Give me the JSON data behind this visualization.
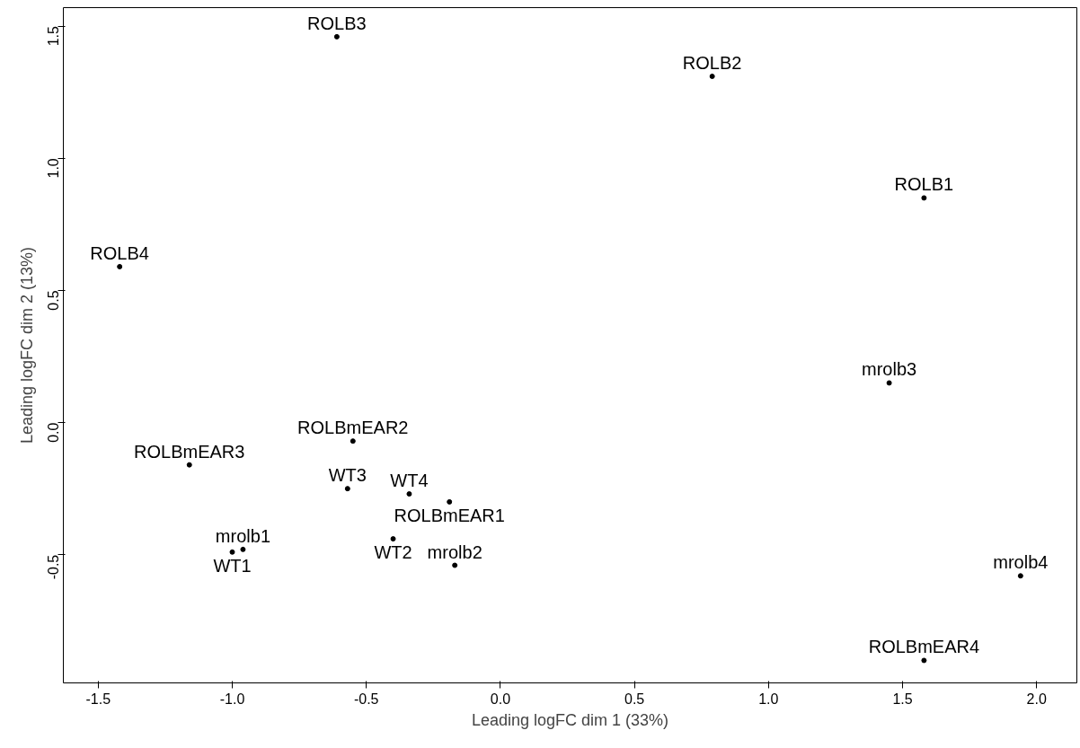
{
  "chart_data": {
    "type": "scatter",
    "xlabel": "Leading logFC dim 1 (33%)",
    "ylabel": "Leading logFC dim 2 (13%)",
    "marker": "circle",
    "grid": false,
    "xlim": [
      -1.63,
      2.15
    ],
    "ylim": [
      -0.985,
      1.57
    ],
    "xticks": [
      -1.5,
      {
        "value": -1,
        "label": "-1.0"
      },
      -0.5,
      {
        "value": 0,
        "label": "0.0"
      },
      0.5,
      {
        "value": 1,
        "label": "1.0"
      },
      1.5,
      {
        "value": 2,
        "label": "2.0"
      }
    ],
    "yticks": [
      -0.5,
      {
        "value": 0,
        "label": "0.0"
      },
      0.5,
      {
        "value": 1,
        "label": "1.0"
      },
      1.5
    ],
    "series": [
      {
        "name": "ROLB3",
        "color": "#000000",
        "x": [
          -0.61
        ],
        "values": [
          1.46
        ]
      },
      {
        "name": "ROLB2",
        "color": "#000000",
        "x": [
          0.79
        ],
        "values": [
          1.31
        ]
      },
      {
        "name": "ROLB1",
        "color": "#000000",
        "x": [
          1.58
        ],
        "values": [
          0.85
        ]
      },
      {
        "name": "ROLB4",
        "color": "#000000",
        "x": [
          -1.42
        ],
        "values": [
          0.59
        ]
      },
      {
        "name": "mrolb3",
        "color": "#000000",
        "x": [
          1.45
        ],
        "values": [
          0.15
        ]
      },
      {
        "name": "ROLBmEAR2",
        "color": "#000000",
        "x": [
          -0.55
        ],
        "values": [
          -0.07
        ]
      },
      {
        "name": "ROLBmEAR3",
        "color": "#000000",
        "x": [
          -1.16
        ],
        "values": [
          -0.16
        ]
      },
      {
        "name": "WT3",
        "color": "#000000",
        "x": [
          -0.57
        ],
        "values": [
          -0.25
        ]
      },
      {
        "name": "WT4",
        "color": "#000000",
        "x": [
          -0.34
        ],
        "values": [
          -0.27
        ]
      },
      {
        "name": "ROLBmEAR1",
        "color": "#000000",
        "x": [
          -0.19
        ],
        "values": [
          -0.3
        ]
      },
      {
        "name": "WT2",
        "color": "#000000",
        "x": [
          -0.4
        ],
        "values": [
          -0.44
        ]
      },
      {
        "name": "mrolb1",
        "color": "#000000",
        "x": [
          -0.96
        ],
        "values": [
          -0.48
        ]
      },
      {
        "name": "WT1",
        "color": "#000000",
        "x": [
          -1.0
        ],
        "values": [
          -0.49
        ]
      },
      {
        "name": "mrolb2",
        "color": "#000000",
        "x": [
          -0.17
        ],
        "values": [
          -0.54
        ]
      },
      {
        "name": "mrolb4",
        "color": "#000000",
        "x": [
          1.94
        ],
        "values": [
          -0.58
        ]
      },
      {
        "name": "ROLBmEAR4",
        "color": "#000000",
        "x": [
          1.58
        ],
        "values": [
          -0.9
        ]
      }
    ]
  }
}
